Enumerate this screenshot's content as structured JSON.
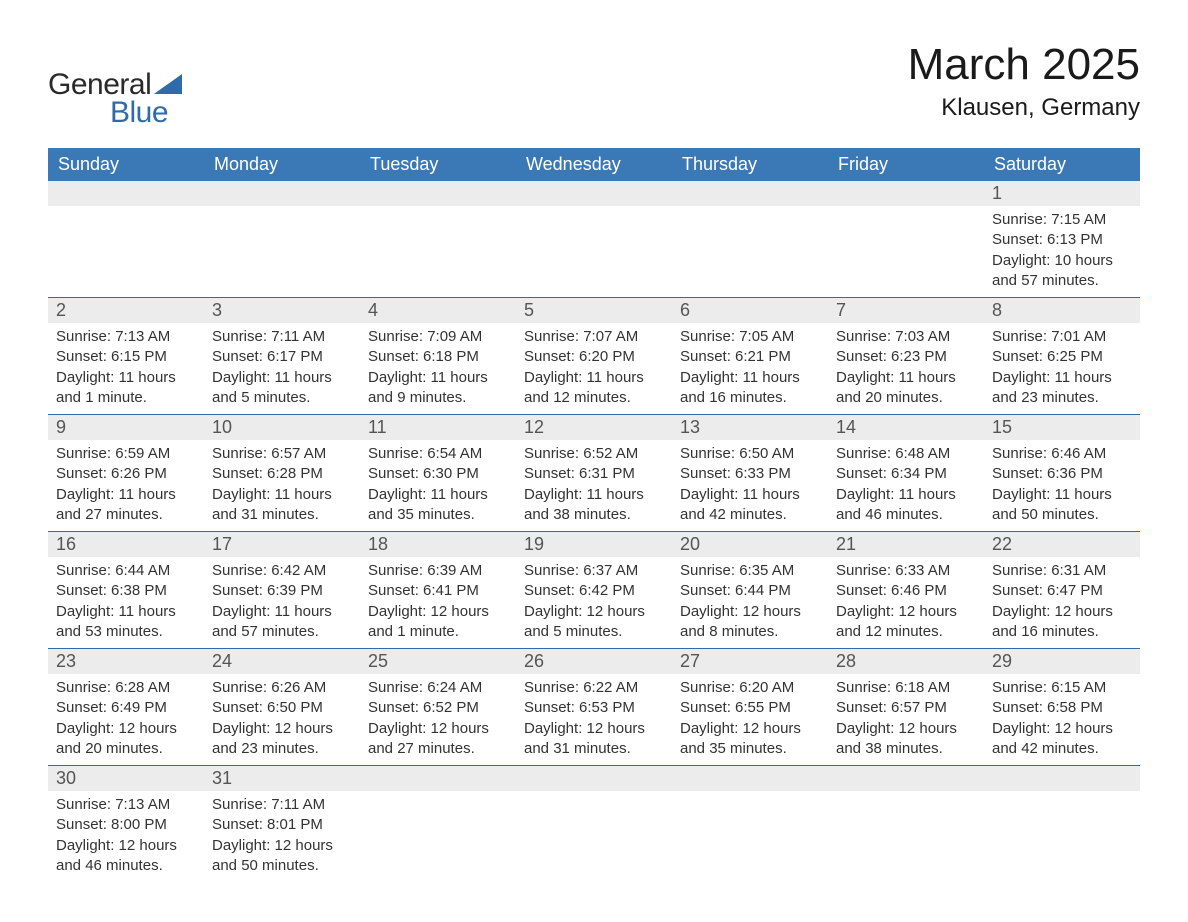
{
  "logo": {
    "word1": "General",
    "word2": "Blue",
    "word1_color": "#2a2a2a",
    "word2_color": "#2e6bab",
    "triangle_color": "#2e6bab"
  },
  "title": "March 2025",
  "location": "Klausen, Germany",
  "colors": {
    "header_bg": "#3b78b6",
    "header_text": "#ffffff",
    "daynum_bg": "#ececec",
    "row_divider": "#2e6bab",
    "body_text": "#333333",
    "daynum_text": "#555555",
    "page_bg": "#ffffff"
  },
  "typography": {
    "title_fontsize": 44,
    "location_fontsize": 24,
    "weekday_fontsize": 18,
    "daynum_fontsize": 18,
    "detail_fontsize": 15
  },
  "weekdays": [
    "Sunday",
    "Monday",
    "Tuesday",
    "Wednesday",
    "Thursday",
    "Friday",
    "Saturday"
  ],
  "weeks": [
    [
      null,
      null,
      null,
      null,
      null,
      null,
      {
        "day": "1",
        "sunrise": "Sunrise: 7:15 AM",
        "sunset": "Sunset: 6:13 PM",
        "daylight1": "Daylight: 10 hours",
        "daylight2": "and 57 minutes."
      }
    ],
    [
      {
        "day": "2",
        "sunrise": "Sunrise: 7:13 AM",
        "sunset": "Sunset: 6:15 PM",
        "daylight1": "Daylight: 11 hours",
        "daylight2": "and 1 minute."
      },
      {
        "day": "3",
        "sunrise": "Sunrise: 7:11 AM",
        "sunset": "Sunset: 6:17 PM",
        "daylight1": "Daylight: 11 hours",
        "daylight2": "and 5 minutes."
      },
      {
        "day": "4",
        "sunrise": "Sunrise: 7:09 AM",
        "sunset": "Sunset: 6:18 PM",
        "daylight1": "Daylight: 11 hours",
        "daylight2": "and 9 minutes."
      },
      {
        "day": "5",
        "sunrise": "Sunrise: 7:07 AM",
        "sunset": "Sunset: 6:20 PM",
        "daylight1": "Daylight: 11 hours",
        "daylight2": "and 12 minutes."
      },
      {
        "day": "6",
        "sunrise": "Sunrise: 7:05 AM",
        "sunset": "Sunset: 6:21 PM",
        "daylight1": "Daylight: 11 hours",
        "daylight2": "and 16 minutes."
      },
      {
        "day": "7",
        "sunrise": "Sunrise: 7:03 AM",
        "sunset": "Sunset: 6:23 PM",
        "daylight1": "Daylight: 11 hours",
        "daylight2": "and 20 minutes."
      },
      {
        "day": "8",
        "sunrise": "Sunrise: 7:01 AM",
        "sunset": "Sunset: 6:25 PM",
        "daylight1": "Daylight: 11 hours",
        "daylight2": "and 23 minutes."
      }
    ],
    [
      {
        "day": "9",
        "sunrise": "Sunrise: 6:59 AM",
        "sunset": "Sunset: 6:26 PM",
        "daylight1": "Daylight: 11 hours",
        "daylight2": "and 27 minutes."
      },
      {
        "day": "10",
        "sunrise": "Sunrise: 6:57 AM",
        "sunset": "Sunset: 6:28 PM",
        "daylight1": "Daylight: 11 hours",
        "daylight2": "and 31 minutes."
      },
      {
        "day": "11",
        "sunrise": "Sunrise: 6:54 AM",
        "sunset": "Sunset: 6:30 PM",
        "daylight1": "Daylight: 11 hours",
        "daylight2": "and 35 minutes."
      },
      {
        "day": "12",
        "sunrise": "Sunrise: 6:52 AM",
        "sunset": "Sunset: 6:31 PM",
        "daylight1": "Daylight: 11 hours",
        "daylight2": "and 38 minutes."
      },
      {
        "day": "13",
        "sunrise": "Sunrise: 6:50 AM",
        "sunset": "Sunset: 6:33 PM",
        "daylight1": "Daylight: 11 hours",
        "daylight2": "and 42 minutes."
      },
      {
        "day": "14",
        "sunrise": "Sunrise: 6:48 AM",
        "sunset": "Sunset: 6:34 PM",
        "daylight1": "Daylight: 11 hours",
        "daylight2": "and 46 minutes."
      },
      {
        "day": "15",
        "sunrise": "Sunrise: 6:46 AM",
        "sunset": "Sunset: 6:36 PM",
        "daylight1": "Daylight: 11 hours",
        "daylight2": "and 50 minutes."
      }
    ],
    [
      {
        "day": "16",
        "sunrise": "Sunrise: 6:44 AM",
        "sunset": "Sunset: 6:38 PM",
        "daylight1": "Daylight: 11 hours",
        "daylight2": "and 53 minutes."
      },
      {
        "day": "17",
        "sunrise": "Sunrise: 6:42 AM",
        "sunset": "Sunset: 6:39 PM",
        "daylight1": "Daylight: 11 hours",
        "daylight2": "and 57 minutes."
      },
      {
        "day": "18",
        "sunrise": "Sunrise: 6:39 AM",
        "sunset": "Sunset: 6:41 PM",
        "daylight1": "Daylight: 12 hours",
        "daylight2": "and 1 minute."
      },
      {
        "day": "19",
        "sunrise": "Sunrise: 6:37 AM",
        "sunset": "Sunset: 6:42 PM",
        "daylight1": "Daylight: 12 hours",
        "daylight2": "and 5 minutes."
      },
      {
        "day": "20",
        "sunrise": "Sunrise: 6:35 AM",
        "sunset": "Sunset: 6:44 PM",
        "daylight1": "Daylight: 12 hours",
        "daylight2": "and 8 minutes."
      },
      {
        "day": "21",
        "sunrise": "Sunrise: 6:33 AM",
        "sunset": "Sunset: 6:46 PM",
        "daylight1": "Daylight: 12 hours",
        "daylight2": "and 12 minutes."
      },
      {
        "day": "22",
        "sunrise": "Sunrise: 6:31 AM",
        "sunset": "Sunset: 6:47 PM",
        "daylight1": "Daylight: 12 hours",
        "daylight2": "and 16 minutes."
      }
    ],
    [
      {
        "day": "23",
        "sunrise": "Sunrise: 6:28 AM",
        "sunset": "Sunset: 6:49 PM",
        "daylight1": "Daylight: 12 hours",
        "daylight2": "and 20 minutes."
      },
      {
        "day": "24",
        "sunrise": "Sunrise: 6:26 AM",
        "sunset": "Sunset: 6:50 PM",
        "daylight1": "Daylight: 12 hours",
        "daylight2": "and 23 minutes."
      },
      {
        "day": "25",
        "sunrise": "Sunrise: 6:24 AM",
        "sunset": "Sunset: 6:52 PM",
        "daylight1": "Daylight: 12 hours",
        "daylight2": "and 27 minutes."
      },
      {
        "day": "26",
        "sunrise": "Sunrise: 6:22 AM",
        "sunset": "Sunset: 6:53 PM",
        "daylight1": "Daylight: 12 hours",
        "daylight2": "and 31 minutes."
      },
      {
        "day": "27",
        "sunrise": "Sunrise: 6:20 AM",
        "sunset": "Sunset: 6:55 PM",
        "daylight1": "Daylight: 12 hours",
        "daylight2": "and 35 minutes."
      },
      {
        "day": "28",
        "sunrise": "Sunrise: 6:18 AM",
        "sunset": "Sunset: 6:57 PM",
        "daylight1": "Daylight: 12 hours",
        "daylight2": "and 38 minutes."
      },
      {
        "day": "29",
        "sunrise": "Sunrise: 6:15 AM",
        "sunset": "Sunset: 6:58 PM",
        "daylight1": "Daylight: 12 hours",
        "daylight2": "and 42 minutes."
      }
    ],
    [
      {
        "day": "30",
        "sunrise": "Sunrise: 7:13 AM",
        "sunset": "Sunset: 8:00 PM",
        "daylight1": "Daylight: 12 hours",
        "daylight2": "and 46 minutes."
      },
      {
        "day": "31",
        "sunrise": "Sunrise: 7:11 AM",
        "sunset": "Sunset: 8:01 PM",
        "daylight1": "Daylight: 12 hours",
        "daylight2": "and 50 minutes."
      },
      null,
      null,
      null,
      null,
      null
    ]
  ]
}
